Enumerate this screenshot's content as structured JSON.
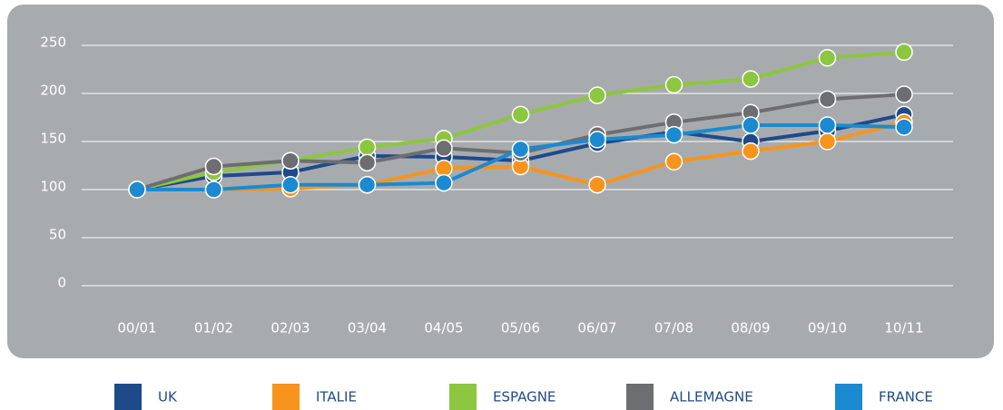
{
  "chart_data": {
    "type": "line",
    "categories": [
      "00/01",
      "01/02",
      "02/03",
      "03/04",
      "04/05",
      "05/06",
      "06/07",
      "07/08",
      "08/09",
      "09/10",
      "10/11"
    ],
    "series": [
      {
        "name": "UK",
        "color": "#1f4a8a",
        "values": [
          100,
          114,
          118,
          135,
          134,
          130,
          148,
          160,
          150,
          161,
          178
        ]
      },
      {
        "name": "ITALIE",
        "color": "#f7941d",
        "values": [
          100,
          100,
          101,
          105,
          122,
          124,
          105,
          129,
          140,
          150,
          170
        ]
      },
      {
        "name": "ESPAGNE",
        "color": "#8dc63f",
        "values": [
          100,
          118,
          130,
          144,
          153,
          178,
          198,
          209,
          215,
          237,
          243
        ]
      },
      {
        "name": "ALLEMAGNE",
        "color": "#6d6e71",
        "values": [
          100,
          124,
          130,
          128,
          143,
          138,
          157,
          170,
          180,
          194,
          199
        ]
      },
      {
        "name": "FRANCE",
        "color": "#1b8ad0",
        "values": [
          100,
          100,
          105,
          105,
          107,
          142,
          152,
          157,
          167,
          167,
          165
        ]
      }
    ],
    "ylim": [
      0,
      250
    ],
    "yticks": [
      0,
      50,
      100,
      150,
      200,
      250
    ],
    "grid": true,
    "legend": "bottom"
  }
}
